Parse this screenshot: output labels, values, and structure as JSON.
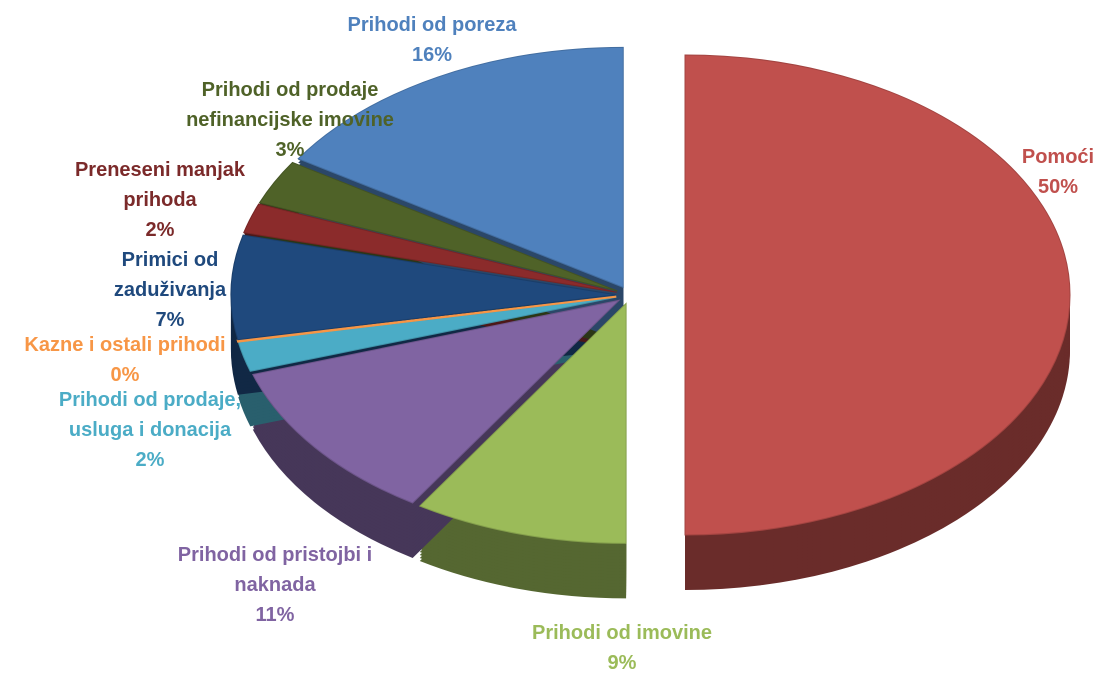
{
  "chart_data": {
    "type": "pie",
    "categories": [
      "Pomoći",
      "Prihodi od imovine",
      "Prihodi od pristojbi i naknada",
      "Prihodi od prodaje, usluga i donacija",
      "Kazne i ostali prihodi",
      "Primici od zaduživanja",
      "Preneseni manjak prihoda",
      "Prihodi od prodaje nefinancijske imovine",
      "Prihodi od poreza"
    ],
    "values": [
      50,
      9,
      11,
      2,
      0,
      7,
      2,
      3,
      16
    ],
    "value_labels": [
      "50%",
      "9%",
      "11%",
      "2%",
      "0%",
      "7%",
      "2%",
      "3%",
      "16%"
    ],
    "colors": [
      "#c0504d",
      "#9bbb59",
      "#8064a2",
      "#4bacc6",
      "#f79646",
      "#1f497d",
      "#8b2b2b",
      "#4f6228",
      "#4f81bd"
    ]
  }
}
